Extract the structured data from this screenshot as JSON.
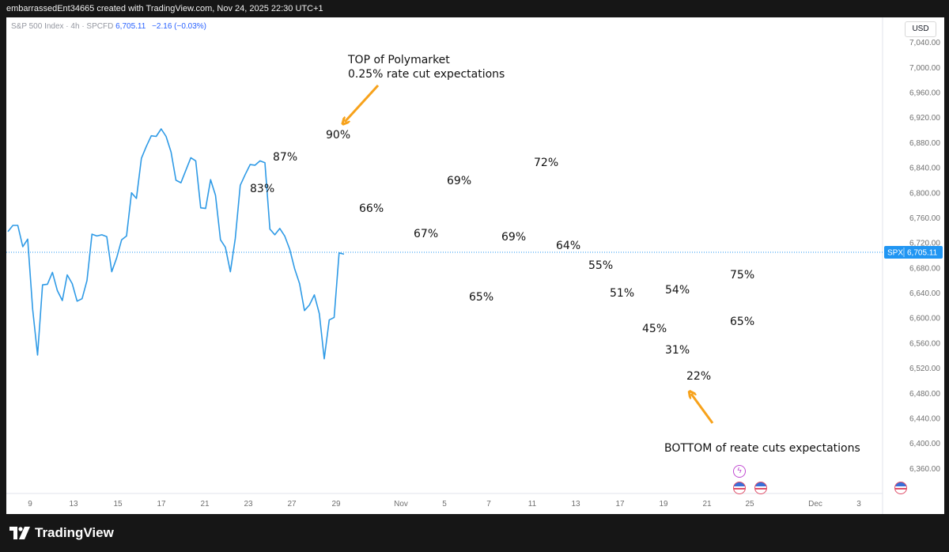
{
  "header": {
    "caption": "embarrassedEnt34665 created with TradingView.com, Nov 24, 2025 22:30 UTC+1"
  },
  "legend": {
    "symbol": "S&P 500 Index · 4h · SPCFD",
    "price": "6,705.11",
    "change": "−2.16 (−0.03%)"
  },
  "currency": "USD",
  "price_tag": {
    "symbol": "SPX",
    "price": "6,705.11"
  },
  "footer": {
    "brand": "TradingView"
  },
  "colors": {
    "line": "#2e9ae6",
    "arrow": "#f7a21b",
    "price_tag": "#2196f3"
  },
  "annotations": {
    "top_label_line1": "TOP of Polymarket",
    "top_label_line2": "0.25% rate cut expectations",
    "bottom_label": "BOTTOM of reate cuts expectations",
    "pct": [
      "90%",
      "87%",
      "83%",
      "66%",
      "67%",
      "69%",
      "72%",
      "69%",
      "65%",
      "64%",
      "55%",
      "51%",
      "45%",
      "54%",
      "31%",
      "22%",
      "75%",
      "65%"
    ]
  },
  "chart_data": {
    "type": "line",
    "title": "S&P 500 Index · 4h · SPCFD",
    "ylim": [
      6320,
      7080
    ],
    "y_ticks": [
      "7,040.00",
      "7,000.00",
      "6,960.00",
      "6,920.00",
      "6,880.00",
      "6,840.00",
      "6,800.00",
      "6,760.00",
      "6,720.00",
      "6,680.00",
      "6,640.00",
      "6,600.00",
      "6,560.00",
      "6,520.00",
      "6,480.00",
      "6,440.00",
      "6,400.00",
      "6,360.00"
    ],
    "x_ticks": [
      "9",
      "13",
      "15",
      "17",
      "21",
      "23",
      "27",
      "29",
      "Nov",
      "5",
      "7",
      "11",
      "13",
      "17",
      "19",
      "21",
      "25",
      "Dec",
      "3"
    ],
    "series": [
      {
        "values": [
          6738,
          6748,
          6748,
          6714,
          6726,
          6614,
          6541,
          6653,
          6654,
          6673,
          6644,
          6628,
          6669,
          6655,
          6627,
          6631,
          6660,
          6734,
          6731,
          6733,
          6730,
          6674,
          6696,
          6725,
          6731,
          6800,
          6791,
          6855,
          6874,
          6891,
          6890,
          6902,
          6890,
          6865,
          6820,
          6816,
          6836,
          6856,
          6851,
          6776,
          6775,
          6821,
          6796,
          6725,
          6713,
          6674,
          6727,
          6812,
          6829,
          6845,
          6844,
          6851,
          6848,
          6742,
          6733,
          6743,
          6731,
          6710,
          6679,
          6655,
          6612,
          6621,
          6637,
          6607,
          6535,
          6597,
          6601,
          6704,
          6702
        ]
      }
    ]
  }
}
